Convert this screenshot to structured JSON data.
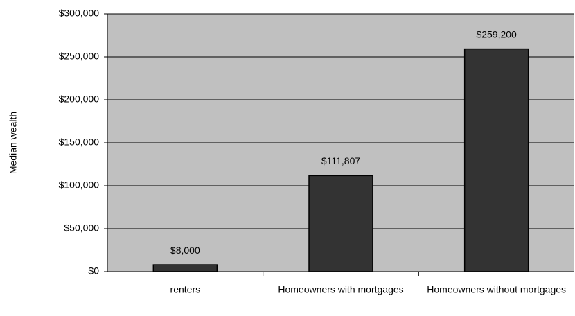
{
  "chart_data": {
    "type": "bar",
    "y_label": "Median wealth",
    "categories": [
      "renters",
      "Homeowners with mortgages",
      "Homeowners without mortgages"
    ],
    "values": [
      8000,
      111807,
      259200
    ],
    "value_labels": [
      "$8,000",
      "$111,807",
      "$259,200"
    ],
    "color": "#333333",
    "ylim": [
      0,
      300000
    ],
    "yticks": [
      {
        "value": 0,
        "label": "$0"
      },
      {
        "value": 50000,
        "label": "$50,000"
      },
      {
        "value": 100000,
        "label": "$100,000"
      },
      {
        "value": 150000,
        "label": "$150,000"
      },
      {
        "value": 200000,
        "label": "$200,000"
      },
      {
        "value": 250000,
        "label": "$250,000"
      },
      {
        "value": 300000,
        "label": "$300,000"
      }
    ],
    "grid": true
  }
}
